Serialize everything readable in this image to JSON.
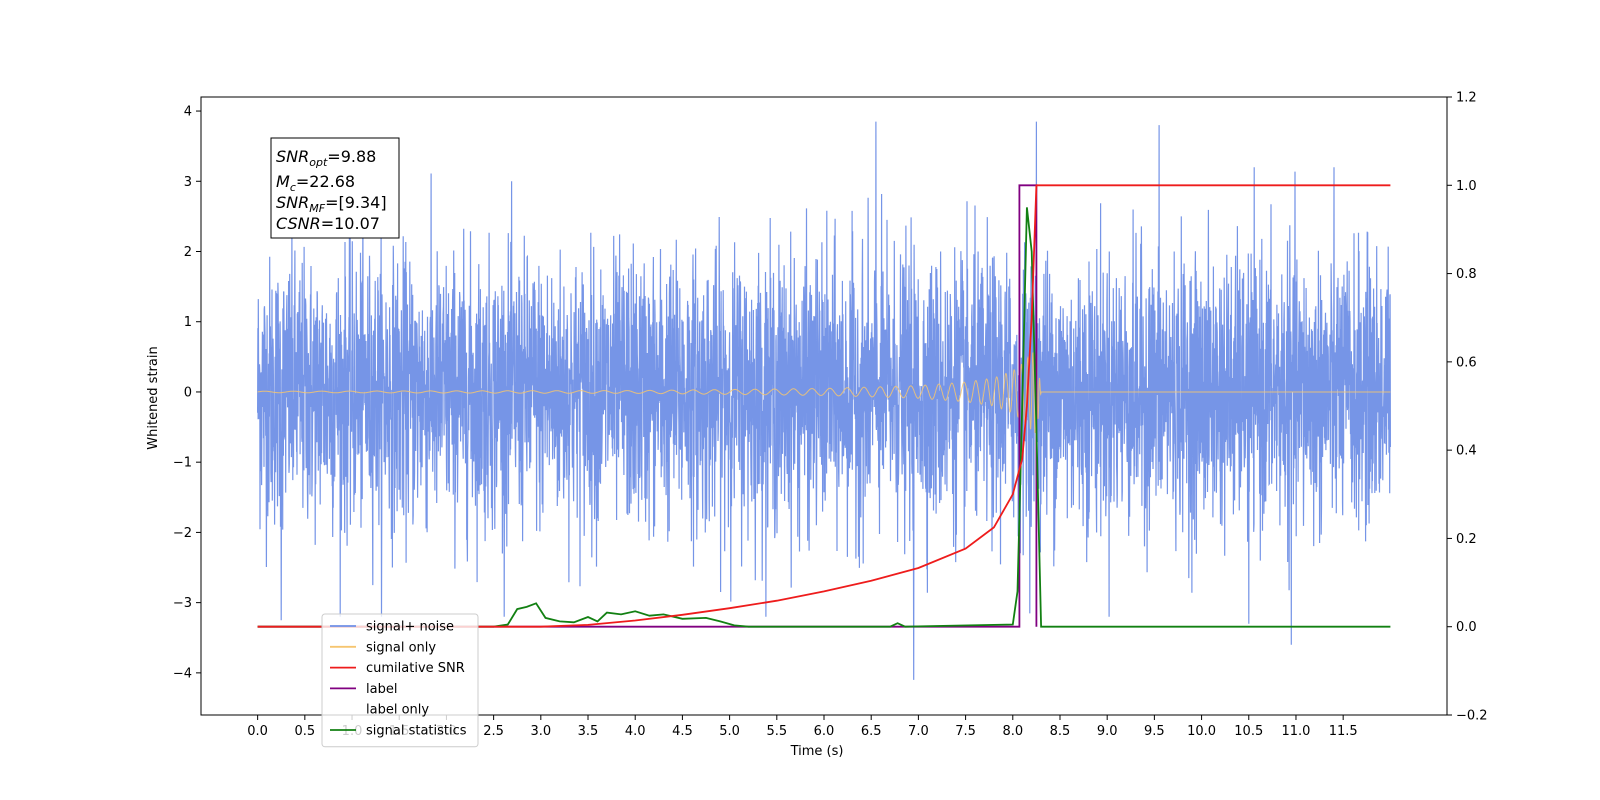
{
  "chart_data": {
    "type": "line",
    "xlabel": "Time (s)",
    "ylabel": "Whitened strain",
    "xlim": [
      -0.6,
      12.6
    ],
    "ylim": [
      -4.6,
      4.2
    ],
    "y2lim": [
      -0.2,
      1.2
    ],
    "x_ticks": [
      "0.0",
      "0.5",
      "1.0",
      "1.5",
      "2.0",
      "2.5",
      "3.0",
      "3.5",
      "4.0",
      "4.5",
      "5.0",
      "5.5",
      "6.0",
      "6.5",
      "7.0",
      "7.5",
      "8.0",
      "8.5",
      "9.0",
      "9.5",
      "10.0",
      "10.5",
      "11.0",
      "11.5"
    ],
    "y_ticks": [
      "4",
      "3",
      "2",
      "1",
      "0",
      "−1",
      "−2",
      "−3",
      "−4"
    ],
    "y2_ticks": [
      "1.2",
      "1.0",
      "0.8",
      "0.6",
      "0.4",
      "0.2",
      "0.0",
      "−0.2"
    ],
    "annotation": {
      "snr_opt": "=9.88",
      "mc": "=22.68",
      "snr_mf": "=[9.34]",
      "csnr": "=10.07"
    },
    "legend_placement": "lower-left",
    "grid": false,
    "series": [
      {
        "name": "signal+ noise",
        "color": "#6f8fe6",
        "axis": "left",
        "description_values": "whitened noise, approx. std 1, peaks to about ±3.8 over t = 0 to 12 s",
        "x_range": [
          0,
          12
        ],
        "spikes": [
          {
            "x": 6.55,
            "y": 3.85
          },
          {
            "x": 8.25,
            "y": 3.85
          },
          {
            "x": 9.55,
            "y": 3.8
          },
          {
            "x": 6.95,
            "y": -4.1
          },
          {
            "x": 10.95,
            "y": -3.6
          },
          {
            "x": 10.5,
            "y": -3.3
          },
          {
            "x": 0.25,
            "y": -3.25
          }
        ]
      },
      {
        "name": "signal only",
        "color": "#f6c570",
        "axis": "left",
        "description_values": "chirp, amplitude ~0.01 rising to ~0.6 at merger near 8.25 s, zero after",
        "x": [
          0,
          4,
          6,
          7,
          7.5,
          7.8,
          8.0,
          8.1,
          8.2,
          8.25,
          8.3,
          12
        ],
        "envelope": [
          0.01,
          0.02,
          0.05,
          0.09,
          0.14,
          0.2,
          0.3,
          0.4,
          0.55,
          0.6,
          0,
          0
        ]
      },
      {
        "name": "cumilative SNR",
        "color": "#ee1c1c",
        "axis": "right",
        "x": [
          0,
          3.0,
          3.5,
          4.0,
          4.5,
          5.0,
          5.5,
          6.0,
          6.5,
          7.0,
          7.5,
          7.8,
          8.0,
          8.1,
          8.15,
          8.2,
          8.25,
          12
        ],
        "values": [
          0,
          0,
          0.004,
          0.014,
          0.027,
          0.042,
          0.059,
          0.08,
          0.104,
          0.133,
          0.177,
          0.225,
          0.3,
          0.38,
          0.5,
          0.7,
          1.0,
          1.0
        ]
      },
      {
        "name": "label",
        "color": "#800080",
        "axis": "right",
        "x": [
          0,
          8.07,
          8.07,
          8.25,
          8.25
        ],
        "values": [
          0,
          0,
          1,
          1,
          0
        ]
      },
      {
        "name": "label only",
        "color": "#9a9a9a",
        "axis": "right",
        "legend_only": true
      },
      {
        "name": "signal statistics",
        "color": "#128012",
        "axis": "right",
        "x": [
          0,
          2.5,
          2.65,
          2.75,
          2.85,
          2.95,
          3.05,
          3.2,
          3.35,
          3.5,
          3.6,
          3.7,
          3.85,
          4.0,
          4.15,
          4.3,
          4.5,
          4.75,
          4.9,
          5.05,
          5.2,
          6.7,
          6.78,
          6.86,
          8.0,
          8.05,
          8.1,
          8.15,
          8.2,
          8.25,
          8.3,
          12
        ],
        "values": [
          0,
          0,
          0.005,
          0.04,
          0.045,
          0.053,
          0.02,
          0.012,
          0.01,
          0.022,
          0.012,
          0.032,
          0.028,
          0.035,
          0.025,
          0.028,
          0.018,
          0.02,
          0.012,
          0.003,
          0,
          0,
          0.008,
          0,
          0.005,
          0.08,
          0.5,
          0.95,
          0.85,
          0.45,
          0,
          0
        ]
      }
    ]
  }
}
